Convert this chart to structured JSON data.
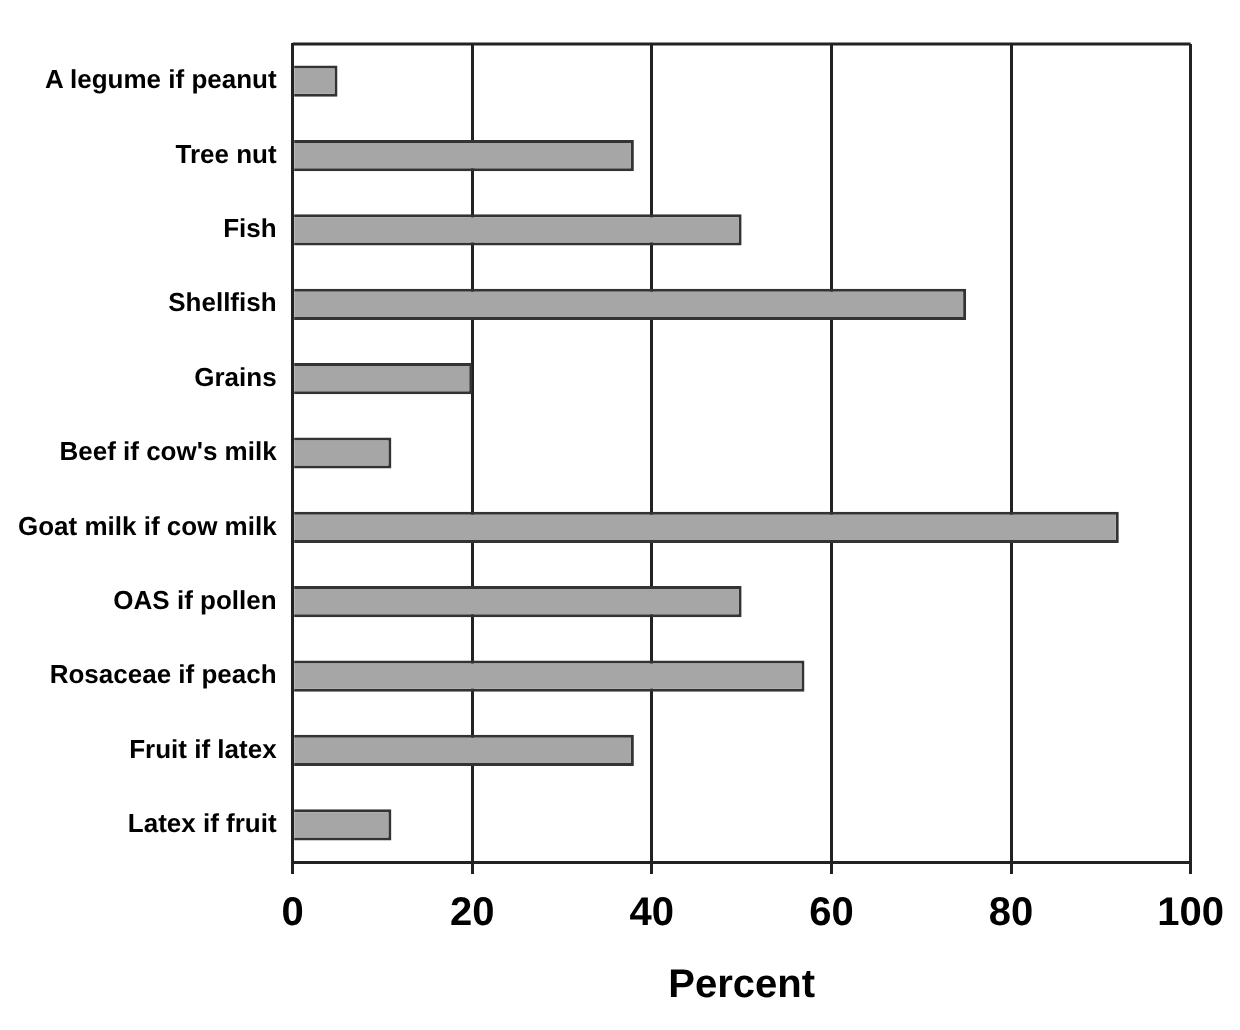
{
  "chart_data": {
    "type": "bar",
    "orientation": "horizontal",
    "xlabel": "Percent",
    "categories": [
      "A legume if peanut",
      "Tree nut",
      "Fish",
      "Shellfish",
      "Grains",
      "Beef if cow's milk",
      "Goat milk if cow milk",
      "OAS if pollen",
      "Rosaceae if peach",
      "Fruit if latex",
      "Latex if fruit"
    ],
    "values": [
      5,
      38,
      50,
      75,
      20,
      11,
      92,
      50,
      57,
      38,
      11
    ],
    "color": "#a6a6a6",
    "xlim": [
      0,
      100
    ],
    "xticks": [
      0,
      20,
      40,
      60,
      80,
      100
    ],
    "grid": "x",
    "legend": false
  }
}
